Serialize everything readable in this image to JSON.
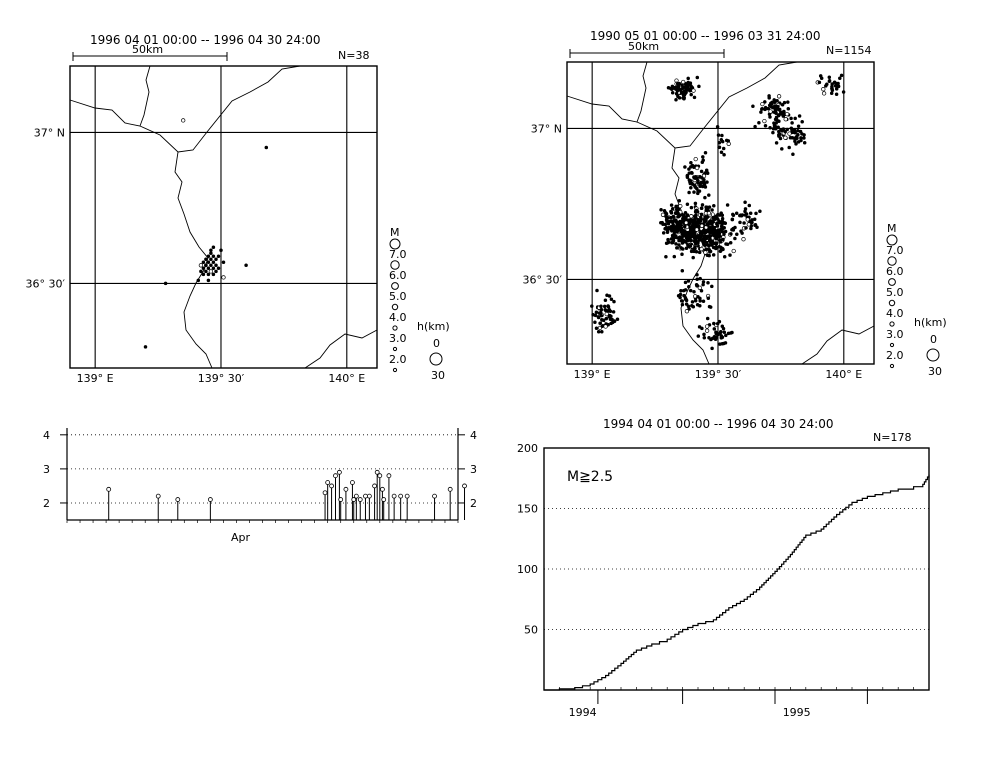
{
  "chart_data": [
    {
      "type": "scatter",
      "panel": "map-left",
      "header": "1996 04 01 00:00 -- 1996 04 30 24:00",
      "count_label": "N=38",
      "scale_label": "50km",
      "xlim_deg": [
        138.9,
        140.12
      ],
      "ylim_deg": [
        36.22,
        37.22
      ],
      "lat_labels": [
        {
          "deg": 37.0,
          "text": "37° N"
        },
        {
          "deg": 36.5,
          "text": "36° 30′"
        }
      ],
      "lon_labels": [
        {
          "deg": 139.0,
          "text": "139° E"
        },
        {
          "deg": 139.5,
          "text": "139° 30′"
        },
        {
          "deg": 140.0,
          "text": "140° E"
        }
      ],
      "events": [
        [
          139.35,
          37.04
        ],
        [
          139.68,
          36.95
        ],
        [
          139.46,
          36.61
        ],
        [
          139.47,
          36.59
        ],
        [
          139.44,
          36.56
        ],
        [
          139.45,
          36.57
        ],
        [
          139.43,
          36.55
        ],
        [
          139.46,
          36.56
        ],
        [
          139.47,
          36.57
        ],
        [
          139.44,
          36.54
        ],
        [
          139.48,
          36.58
        ],
        [
          139.46,
          36.54
        ],
        [
          139.45,
          36.55
        ],
        [
          139.49,
          36.59
        ],
        [
          139.51,
          36.57
        ],
        [
          139.42,
          36.54
        ],
        [
          139.44,
          36.58
        ],
        [
          139.47,
          36.55
        ],
        [
          139.45,
          36.53
        ],
        [
          139.43,
          36.57
        ],
        [
          139.46,
          36.6
        ],
        [
          139.48,
          36.56
        ],
        [
          139.42,
          36.56
        ],
        [
          139.49,
          36.55
        ],
        [
          139.45,
          36.59
        ],
        [
          139.47,
          36.53
        ],
        [
          139.44,
          36.56
        ],
        [
          139.5,
          36.61
        ],
        [
          139.46,
          36.58
        ],
        [
          139.48,
          36.54
        ],
        [
          139.43,
          36.53
        ],
        [
          139.45,
          36.51
        ],
        [
          139.41,
          36.51
        ],
        [
          139.51,
          36.52
        ],
        [
          139.6,
          36.56
        ],
        [
          139.28,
          36.5
        ],
        [
          139.2,
          36.29
        ],
        [
          139.47,
          36.62
        ]
      ]
    },
    {
      "type": "scatter",
      "panel": "map-right",
      "header": "1990 05 01 00:00 -- 1996 03 31 24:00",
      "count_label": "N=1154",
      "scale_label": "50km",
      "xlim_deg": [
        138.9,
        140.12
      ],
      "ylim_deg": [
        36.22,
        37.22
      ],
      "lat_labels": [
        {
          "deg": 37.0,
          "text": "37° N"
        },
        {
          "deg": 36.5,
          "text": "36° 30′"
        }
      ],
      "lon_labels": [
        {
          "deg": 139.0,
          "text": "139° E"
        },
        {
          "deg": 139.5,
          "text": "139° 30′"
        },
        {
          "deg": 140.0,
          "text": "140° E"
        }
      ],
      "clusters": [
        {
          "center": [
            139.43,
            36.66
          ],
          "spread": [
            0.1,
            0.07
          ],
          "count": 520
        },
        {
          "center": [
            139.33,
            36.69
          ],
          "spread": [
            0.05,
            0.05
          ],
          "count": 120
        },
        {
          "center": [
            139.36,
            37.13
          ],
          "spread": [
            0.05,
            0.03
          ],
          "count": 80
        },
        {
          "center": [
            139.72,
            37.06
          ],
          "spread": [
            0.06,
            0.04
          ],
          "count": 70
        },
        {
          "center": [
            139.78,
            36.98
          ],
          "spread": [
            0.06,
            0.05
          ],
          "count": 60
        },
        {
          "center": [
            139.42,
            36.84
          ],
          "spread": [
            0.05,
            0.06
          ],
          "count": 70
        },
        {
          "center": [
            139.05,
            36.38
          ],
          "spread": [
            0.04,
            0.06
          ],
          "count": 60
        },
        {
          "center": [
            139.49,
            36.32
          ],
          "spread": [
            0.06,
            0.05
          ],
          "count": 40
        },
        {
          "center": [
            139.95,
            37.15
          ],
          "spread": [
            0.05,
            0.03
          ],
          "count": 30
        },
        {
          "center": [
            139.6,
            36.7
          ],
          "spread": [
            0.06,
            0.05
          ],
          "count": 40
        },
        {
          "center": [
            139.4,
            36.45
          ],
          "spread": [
            0.07,
            0.06
          ],
          "count": 50
        },
        {
          "center": [
            139.52,
            36.95
          ],
          "spread": [
            0.03,
            0.05
          ],
          "count": 14
        }
      ]
    },
    {
      "type": "stem",
      "panel": "mt-plot",
      "xlabel": "Apr",
      "ylim": [
        1.5,
        4.2
      ],
      "yticks": [
        2,
        3,
        4
      ],
      "xlim_days": [
        1,
        31
      ],
      "events": [
        {
          "day": 4.2,
          "m": 2.4
        },
        {
          "day": 8.0,
          "m": 2.2
        },
        {
          "day": 9.5,
          "m": 2.1
        },
        {
          "day": 12.0,
          "m": 2.1
        },
        {
          "day": 20.8,
          "m": 2.3
        },
        {
          "day": 21.0,
          "m": 2.6
        },
        {
          "day": 21.3,
          "m": 2.5
        },
        {
          "day": 21.6,
          "m": 2.8
        },
        {
          "day": 21.9,
          "m": 2.9
        },
        {
          "day": 22.0,
          "m": 2.1
        },
        {
          "day": 22.4,
          "m": 2.4
        },
        {
          "day": 22.9,
          "m": 2.6
        },
        {
          "day": 23.0,
          "m": 2.1
        },
        {
          "day": 23.2,
          "m": 2.2
        },
        {
          "day": 23.5,
          "m": 2.1
        },
        {
          "day": 23.9,
          "m": 2.2
        },
        {
          "day": 24.2,
          "m": 2.2
        },
        {
          "day": 24.6,
          "m": 2.5
        },
        {
          "day": 24.8,
          "m": 2.9
        },
        {
          "day": 25.0,
          "m": 2.8
        },
        {
          "day": 25.2,
          "m": 2.4
        },
        {
          "day": 25.3,
          "m": 2.1
        },
        {
          "day": 25.7,
          "m": 2.8
        },
        {
          "day": 26.1,
          "m": 2.2
        },
        {
          "day": 26.6,
          "m": 2.2
        },
        {
          "day": 27.1,
          "m": 2.2
        },
        {
          "day": 29.2,
          "m": 2.2
        },
        {
          "day": 30.4,
          "m": 2.4
        },
        {
          "day": 31.5,
          "m": 2.5
        }
      ]
    },
    {
      "type": "line",
      "panel": "cumulative",
      "header": "1994 04 01 00:00 -- 1996 04 30 24:00",
      "count_label": "N=178",
      "annotation": "M≧2.5",
      "ylim": [
        0,
        200
      ],
      "yticks": [
        50,
        100,
        150,
        200
      ],
      "xlim_months": [
        0,
        25
      ],
      "x_tick_months": [
        3.5,
        9,
        15,
        21
      ],
      "year_labels": [
        {
          "month": 1.6,
          "text": "1994"
        },
        {
          "month": 15.5,
          "text": "1995"
        }
      ],
      "x": [
        0,
        1,
        2,
        3,
        4,
        5,
        6,
        7,
        8,
        9,
        10,
        11,
        12,
        13,
        14,
        15,
        16,
        17,
        18,
        19,
        20,
        21,
        22,
        23,
        24,
        24.6,
        25
      ],
      "y": [
        0,
        1,
        2,
        5,
        12,
        22,
        33,
        38,
        42,
        50,
        55,
        58,
        68,
        75,
        85,
        98,
        112,
        128,
        133,
        145,
        155,
        160,
        163,
        166,
        168,
        170,
        178
      ]
    }
  ],
  "map_legend": {
    "m_title": "M",
    "m_values": [
      "7.0",
      "6.0",
      "5.0",
      "4.0",
      "3.0",
      "2.0"
    ],
    "h_title": "h(km)",
    "h_values": [
      "0",
      "30"
    ]
  }
}
